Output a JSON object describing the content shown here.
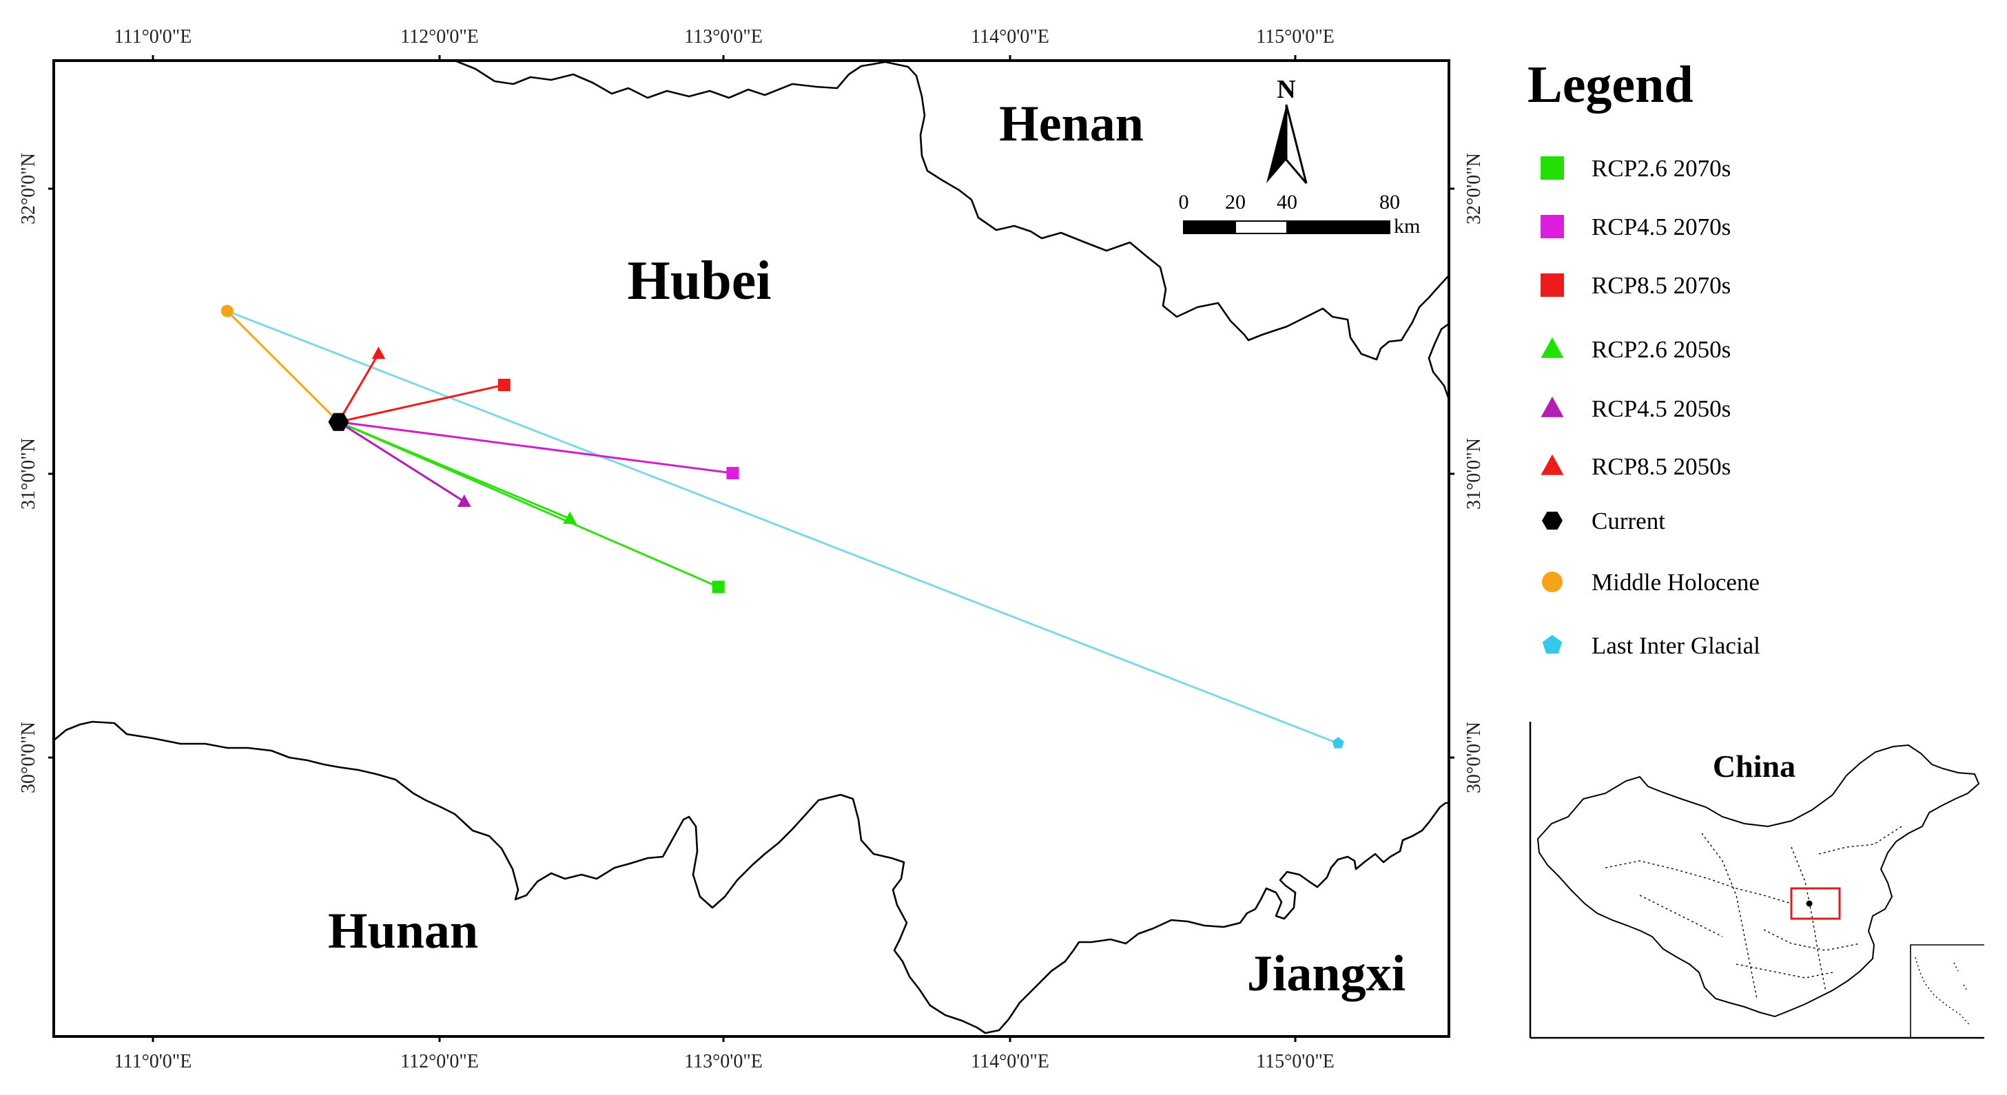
{
  "map": {
    "axes": {
      "top_x_ticks": [
        "111°0'0\"E",
        "112°0'0\"E",
        "113°0'0\"E",
        "114°0'0\"E",
        "115°0'0\"E"
      ],
      "bottom_x_ticks": [
        "111°0'0\"E",
        "112°0'0\"E",
        "113°0'0\"E",
        "114°0'0\"E",
        "115°0'0\"E"
      ],
      "left_y_ticks": [
        "32°0'0\"N",
        "31°0'0\"N",
        "30°0'0\"N"
      ],
      "right_y_ticks": [
        "32°0'0\"N",
        "31°0'0\"N",
        "30°0'0\"N"
      ],
      "lon_range": [
        110.65,
        115.55
      ],
      "lat_range": [
        29.1,
        32.45
      ]
    },
    "regions": {
      "henan": "Henan",
      "hubei": "Hubei",
      "hunan": "Hunan",
      "jiangxi": "Jiangxi"
    },
    "north_arrow": {
      "label": "N"
    },
    "scale_bar": {
      "ticks": [
        "0",
        "20",
        "40",
        "80"
      ],
      "unit": "km"
    },
    "centroids": [
      {
        "id": "current",
        "lon": 111.65,
        "lat": 31.18,
        "symbol": "hexagon",
        "color": "#000000"
      },
      {
        "id": "middle-holocene",
        "lon": 111.26,
        "lat": 31.57,
        "symbol": "circle",
        "color": "#f5a31a"
      },
      {
        "id": "last-inter-glacial",
        "lon": 115.15,
        "lat": 30.05,
        "symbol": "pentagon",
        "color": "#35c9e9"
      },
      {
        "id": "rcp26-2070s",
        "lon": 112.98,
        "lat": 30.6,
        "symbol": "square",
        "color": "#22e000"
      },
      {
        "id": "rcp45-2070s",
        "lon": 113.03,
        "lat": 31.0,
        "symbol": "square",
        "color": "#de1ede"
      },
      {
        "id": "rcp85-2070s",
        "lon": 112.23,
        "lat": 31.31,
        "symbol": "square",
        "color": "#ee1b1b"
      },
      {
        "id": "rcp26-2050s",
        "lon": 112.46,
        "lat": 30.84,
        "symbol": "triangle",
        "color": "#22e000"
      },
      {
        "id": "rcp45-2050s",
        "lon": 112.09,
        "lat": 30.9,
        "symbol": "triangle",
        "color": "#b21eb2"
      },
      {
        "id": "rcp85-2050s",
        "lon": 111.79,
        "lat": 31.42,
        "symbol": "triangle",
        "color": "#ee1b1b"
      }
    ],
    "shift_lines": [
      {
        "from": "current",
        "to": "middle-holocene",
        "color": "#f5a31a"
      },
      {
        "from": "middle-holocene",
        "to": "last-inter-glacial",
        "color": "#7ed8ea"
      },
      {
        "from": "current",
        "to": "rcp26-2070s",
        "color": "#33dd11"
      },
      {
        "from": "current",
        "to": "rcp45-2070s",
        "color": "#cc22cc"
      },
      {
        "from": "current",
        "to": "rcp85-2070s",
        "color": "#ee1b1b"
      },
      {
        "from": "current",
        "to": "rcp26-2050s",
        "color": "#33dd11"
      },
      {
        "from": "current",
        "to": "rcp45-2050s",
        "color": "#b21eb2"
      },
      {
        "from": "current",
        "to": "rcp85-2050s",
        "color": "#ee1b1b"
      }
    ]
  },
  "legend": {
    "title": "Legend",
    "items": [
      {
        "label": "RCP2.6 2070s",
        "symbol": "square",
        "color": "#22e000"
      },
      {
        "label": "RCP4.5 2070s",
        "symbol": "square",
        "color": "#de1ede"
      },
      {
        "label": "RCP8.5 2070s",
        "symbol": "square",
        "color": "#ee1b1b"
      },
      {
        "label": "RCP2.6 2050s",
        "symbol": "triangle",
        "color": "#22e000"
      },
      {
        "label": "RCP4.5 2050s",
        "symbol": "triangle",
        "color": "#b21eb2"
      },
      {
        "label": "RCP8.5 2050s",
        "symbol": "triangle",
        "color": "#ee1b1b"
      },
      {
        "label": "Current",
        "symbol": "hexagon",
        "color": "#000000"
      },
      {
        "label": "Middle Holocene",
        "symbol": "circle",
        "color": "#f5a31a"
      },
      {
        "label": "Last Inter Glacial",
        "symbol": "pentagon",
        "color": "#35c9e9"
      }
    ]
  },
  "inset": {
    "label": "China",
    "highlight_color": "#d42020"
  }
}
